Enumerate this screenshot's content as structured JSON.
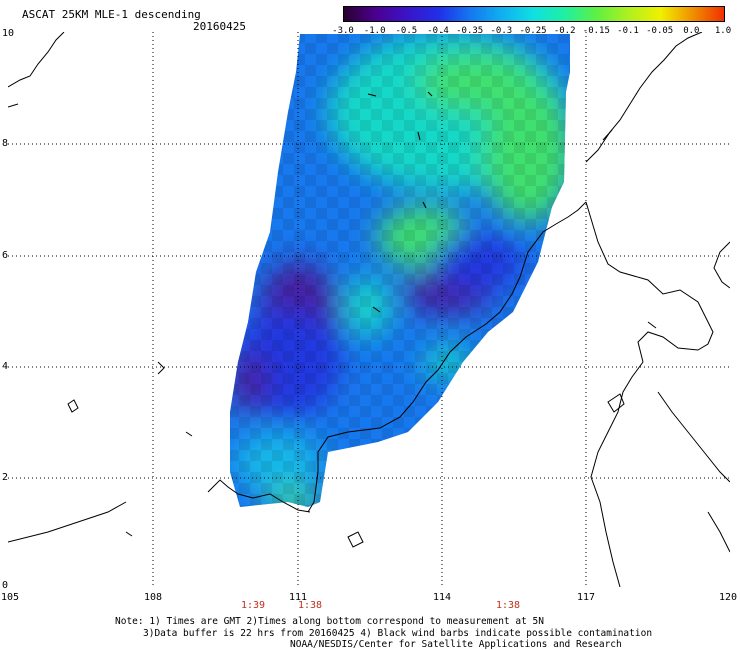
{
  "header": {
    "title": "ASCAT 25KM MLE-1 descending",
    "date": "20160425"
  },
  "colorbar": {
    "labels": [
      "-3.0",
      "-1.0",
      "-0.5",
      "-0.4",
      "-0.35",
      "-0.3",
      "-0.25",
      "-0.2",
      "-0.15",
      "-0.1",
      "-0.05",
      "0.0",
      "1.0"
    ],
    "colors": [
      "#2a0030",
      "#4b0090",
      "#3a14c8",
      "#2030e8",
      "#1478f0",
      "#10b0f0",
      "#10e0e0",
      "#20f0a0",
      "#60f040",
      "#b0f020",
      "#f0f000",
      "#f09000",
      "#f03000"
    ]
  },
  "axes": {
    "x_ticks": [
      "105",
      "108",
      "111",
      "114",
      "117",
      "120"
    ],
    "y_ticks": [
      "10",
      "8",
      "6",
      "4",
      "2",
      "0"
    ]
  },
  "times": [
    "1:39",
    "1:38",
    "1:38"
  ],
  "notes": {
    "line1": "Note: 1) Times are GMT 2)Times along bottom correspond to measurement at 5N",
    "line2": "3)Data buffer is 22 hrs from 20160425 4) Black wind barbs indicate possible contamination",
    "line3": "NOAA/NESDIS/Center for Satellite Applications and Research"
  },
  "swath_colors": {
    "deep": "#4a1a9e",
    "blue": "#2238e0",
    "mid": "#1878ee",
    "cyan": "#14b8e8",
    "teal": "#18d8c8",
    "green": "#40e070"
  }
}
